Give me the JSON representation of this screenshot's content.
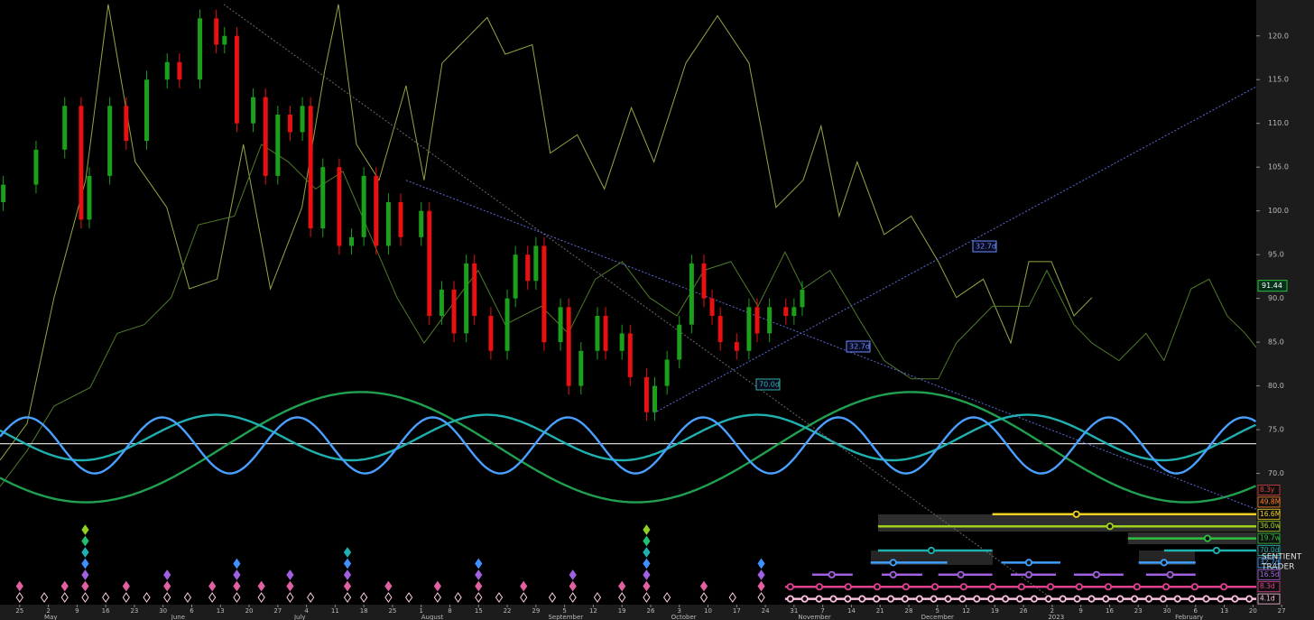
{
  "chart_data": {
    "type": "candlestick",
    "xlim": [
      -4.8,
      315.9
    ],
    "ylim": [
      55,
      124.1
    ],
    "yticks": [
      {
        "value": 70,
        "label": "70.0"
      },
      {
        "value": 75,
        "label": "75.0"
      },
      {
        "value": 80,
        "label": "80.0"
      },
      {
        "value": 85,
        "label": "85.0"
      },
      {
        "value": 90,
        "label": "90.0"
      },
      {
        "value": 95,
        "label": "95.0"
      },
      {
        "value": 100,
        "label": "100.0"
      },
      {
        "value": 105,
        "label": "105.0"
      },
      {
        "value": 110,
        "label": "110.0"
      },
      {
        "value": 115,
        "label": "115.0"
      },
      {
        "value": 120,
        "label": "120.0"
      }
    ],
    "xticks": [
      {
        "value": 0,
        "label": "25"
      },
      {
        "value": 7,
        "label": "2"
      },
      {
        "value": 14,
        "label": "9"
      },
      {
        "value": 21,
        "label": "16"
      },
      {
        "value": 28,
        "label": "23"
      },
      {
        "value": 35,
        "label": "30"
      },
      {
        "value": 42,
        "label": "6"
      },
      {
        "value": 49,
        "label": "13"
      },
      {
        "value": 56,
        "label": "20"
      },
      {
        "value": 63,
        "label": "27"
      },
      {
        "value": 70,
        "label": "4"
      },
      {
        "value": 77,
        "label": "11"
      },
      {
        "value": 84,
        "label": "18"
      },
      {
        "value": 91,
        "label": "25"
      },
      {
        "value": 98,
        "label": "1"
      },
      {
        "value": 105,
        "label": "8"
      },
      {
        "value": 112,
        "label": "15"
      },
      {
        "value": 119,
        "label": "22"
      },
      {
        "value": 126,
        "label": "29"
      },
      {
        "value": 133,
        "label": "5"
      },
      {
        "value": 140,
        "label": "12"
      },
      {
        "value": 147,
        "label": "19"
      },
      {
        "value": 154,
        "label": "26"
      },
      {
        "value": 161,
        "label": "3"
      },
      {
        "value": 168,
        "label": "10"
      },
      {
        "value": 175,
        "label": "17"
      },
      {
        "value": 182,
        "label": "24"
      },
      {
        "value": 189,
        "label": "31"
      },
      {
        "value": 196,
        "label": "7"
      },
      {
        "value": 203,
        "label": "14"
      },
      {
        "value": 210,
        "label": "21"
      },
      {
        "value": 217,
        "label": "28"
      },
      {
        "value": 224,
        "label": "5"
      },
      {
        "value": 231,
        "label": "12"
      },
      {
        "value": 238,
        "label": "19"
      },
      {
        "value": 245,
        "label": "26"
      },
      {
        "value": 252,
        "label": "2"
      },
      {
        "value": 259,
        "label": "9"
      },
      {
        "value": 266,
        "label": "16"
      },
      {
        "value": 273,
        "label": "23"
      },
      {
        "value": 280,
        "label": "30"
      },
      {
        "value": 287,
        "label": "6"
      },
      {
        "value": 294,
        "label": "13"
      },
      {
        "value": 301,
        "label": "20"
      },
      {
        "value": 308,
        "label": "27"
      }
    ],
    "month_ticks": [
      {
        "value": 6,
        "label": "May"
      },
      {
        "value": 37,
        "label": "June"
      },
      {
        "value": 67,
        "label": "July"
      },
      {
        "value": 98,
        "label": "August"
      },
      {
        "value": 129,
        "label": "September"
      },
      {
        "value": 159,
        "label": "October"
      },
      {
        "value": 190,
        "label": "November"
      },
      {
        "value": 220,
        "label": "December"
      },
      {
        "value": 251,
        "label": "2023"
      },
      {
        "value": 282,
        "label": "February"
      }
    ],
    "up_color": "#1aa01a",
    "down_color": "#e81010",
    "candles": {
      "x": [
        -4,
        4,
        11,
        15,
        17,
        22,
        26,
        31,
        36,
        39,
        44,
        48,
        50,
        53,
        57,
        60,
        63,
        66,
        69,
        71,
        74,
        78,
        81,
        84,
        87,
        90,
        93,
        98,
        100,
        103,
        106,
        109,
        111,
        115,
        119,
        121,
        124,
        126,
        128,
        132,
        134,
        137,
        141,
        143,
        147,
        149,
        153,
        155,
        158,
        161,
        164,
        167,
        169,
        171,
        175,
        178,
        180,
        183,
        187,
        189,
        191
      ],
      "open": [
        101,
        103,
        107,
        112,
        99,
        104,
        112,
        108,
        115,
        117,
        115,
        122,
        119,
        120,
        110,
        113,
        104,
        111,
        109,
        112,
        98,
        105,
        96,
        97,
        104,
        96,
        101,
        97,
        100,
        88,
        91,
        86,
        94,
        88,
        84,
        90,
        95,
        92,
        96,
        85,
        89,
        80,
        84,
        88,
        84,
        86,
        81,
        77,
        80,
        83,
        87,
        94,
        90,
        88,
        85,
        84,
        89,
        86,
        89,
        88,
        89
      ],
      "high": [
        104,
        108,
        113,
        113,
        105,
        113,
        113,
        116,
        118,
        118,
        123,
        123,
        121,
        121,
        114,
        114,
        112,
        112,
        113,
        113,
        106,
        106,
        98,
        105,
        105,
        102,
        102,
        101,
        101,
        92,
        92,
        95,
        95,
        89,
        91,
        96,
        96,
        97,
        97,
        90,
        90,
        85,
        89,
        89,
        87,
        87,
        82,
        81,
        84,
        88,
        95,
        95,
        91,
        89,
        86,
        90,
        90,
        90,
        90,
        90,
        92
      ],
      "low": [
        100,
        102,
        106,
        98,
        98,
        103,
        107,
        107,
        114,
        114,
        114,
        118,
        118,
        109,
        109,
        103,
        103,
        108,
        108,
        97,
        97,
        95,
        95,
        96,
        95,
        95,
        96,
        96,
        87,
        87,
        85,
        85,
        87,
        83,
        83,
        89,
        91,
        91,
        84,
        84,
        79,
        79,
        83,
        83,
        83,
        80,
        76,
        76,
        79,
        82,
        86,
        89,
        87,
        84,
        83,
        83,
        85,
        85,
        87,
        87,
        88
      ],
      "close": [
        103,
        107,
        112,
        99,
        104,
        112,
        108,
        115,
        117,
        115,
        122,
        119,
        120,
        110,
        113,
        104,
        111,
        109,
        112,
        98,
        105,
        96,
        97,
        104,
        96,
        101,
        97,
        100,
        88,
        91,
        86,
        94,
        88,
        84,
        90,
        95,
        92,
        96,
        85,
        89,
        80,
        84,
        88,
        84,
        86,
        81,
        77,
        80,
        83,
        87,
        94,
        90,
        88,
        85,
        84,
        89,
        86,
        89,
        88,
        89,
        91
      ]
    },
    "last_price": 91.44,
    "last_price_color": "#30c040",
    "overlays": [
      {
        "color": "#8fa844",
        "x": [
          -4.8,
          1.8,
          8.4,
          16.1,
          21.6,
          28.2,
          35.9,
          41.4,
          48.2,
          54.6,
          61.2,
          68.9,
          74.4,
          77.8,
          82.2,
          87.7,
          94.3,
          98.7,
          103.1,
          109.7,
          114.1,
          118.5,
          125.1,
          129.5,
          136.1,
          142.7,
          149.3,
          154.8,
          162.6,
          170.3,
          178,
          184.6,
          191.2,
          195.6,
          200,
          204.4,
          211,
          217.6,
          224.2,
          228.6,
          235.2,
          241.9,
          246.3,
          251.8,
          257.3,
          261.7
        ],
        "values": [
          71.5,
          75.7,
          90.1,
          103.5,
          123.6,
          105.6,
          100.4,
          91.1,
          92.2,
          107.6,
          91.1,
          100.4,
          115.9,
          123.6,
          107.6,
          103.5,
          114.3,
          103.5,
          116.9,
          120,
          122.1,
          117.9,
          119,
          106.6,
          108.7,
          102.5,
          111.8,
          105.6,
          116.9,
          122.3,
          116.9,
          100.4,
          103.5,
          109.7,
          99.4,
          105.6,
          97.3,
          99.4,
          94.2,
          90.1,
          92.2,
          84.9,
          94.2,
          94.2,
          88,
          90.1
        ]
      },
      {
        "color": "#4f7a2a",
        "x": [
          -4.8,
          1.8,
          8.4,
          17.2,
          23.8,
          30.4,
          37,
          43.6,
          52.4,
          59,
          65.6,
          72.2,
          78.9,
          85.5,
          92.1,
          98.7,
          105.3,
          111.9,
          118.5,
          127.3,
          133.9,
          140.5,
          147.1,
          153.7,
          160.4,
          167,
          173.6,
          180.2,
          186.8,
          191.2,
          197.8,
          204.4,
          211,
          217.6,
          224.2,
          228.6,
          237.4,
          246.3,
          250.7,
          257.3,
          261.7,
          268.3,
          274.9,
          279.3,
          285.9,
          290.3,
          294.7,
          299.1,
          301.8
        ],
        "values": [
          68.5,
          72.6,
          77.7,
          79.8,
          86,
          87,
          90.1,
          98.4,
          99.4,
          107.6,
          105.6,
          102.5,
          104.5,
          97.3,
          90.1,
          84.9,
          89.1,
          93.2,
          87,
          89.1,
          86,
          92.2,
          94.2,
          90.1,
          88,
          93.2,
          94.2,
          89.1,
          95.3,
          91.1,
          93.2,
          88,
          82.9,
          80.8,
          80.8,
          84.9,
          89.1,
          89.1,
          93.2,
          87,
          84.9,
          82.9,
          86,
          82.9,
          91.1,
          92.2,
          88,
          86,
          84.4
        ]
      }
    ],
    "cycles": [
      {
        "color": "#20a050",
        "center": 73,
        "amplitude": 6.3,
        "period": 134.3,
        "peak_x": 83.3
      },
      {
        "color": "#20b0b0",
        "center": 74.1,
        "amplitude": 2.6,
        "period": 66,
        "peak_x": 48
      },
      {
        "color": "#4aa0ff",
        "center": 73.2,
        "amplitude": 3.2,
        "period": 33,
        "peak_x": 34.8
      }
    ],
    "baseline": 73.4,
    "trendlines": [
      {
        "color": "#6a6a6a",
        "x": [
          49.8,
          250.7
        ],
        "y": [
          123.6,
          56.1
        ]
      },
      {
        "color": "#5a6ad8",
        "x": [
          94.3,
          301.8
        ],
        "y": [
          103.5,
          65.9
        ]
      },
      {
        "color": "#5a6ad8",
        "x": [
          154.8,
          301.8
        ],
        "y": [
          76.9,
          114.2
        ]
      }
    ],
    "annotations": [
      {
        "text": "32.7d",
        "color": "#6a8cff"
      },
      {
        "text": "32.7d",
        "color": "#6a8cff"
      },
      {
        "text": "70.0d",
        "color": "#30b0a0"
      }
    ],
    "cycle_rows": [
      {
        "name": "8.3y",
        "color": "#e04040"
      },
      {
        "name": "49.8M",
        "color": "#ff8020"
      },
      {
        "name": "16.6M",
        "color": "#f0d020",
        "segments": [
          [
            237.4,
            301.8
          ]
        ],
        "markers": [
          257.9
        ]
      },
      {
        "name": "36.0w",
        "color": "#a0d020",
        "segments": [
          [
            209.5,
            301.8
          ]
        ],
        "markers": [
          266.1
        ]
      },
      {
        "name": "19.7w",
        "color": "#30c040",
        "segments": [
          [
            270.5,
            301.8
          ]
        ],
        "markers": [
          289.9
        ]
      },
      {
        "name": "70.0d",
        "color": "#20b0b0",
        "segments": [
          [
            209.5,
            237.4
          ],
          [
            279.3,
            301.8
          ]
        ],
        "markers": [
          222.5,
          292.1
        ]
      },
      {
        "name": "32.7d",
        "color": "#40a0ff",
        "segments": [
          [
            207.7,
            226.4
          ],
          [
            239.6,
            254
          ],
          [
            273.1,
            287
          ]
        ],
        "markers": [
          213.2,
          246.3,
          279.3
        ]
      },
      {
        "name": "16.5d",
        "color": "#a060e0",
        "segments": [
          [
            193.4,
            203.3
          ],
          [
            210.4,
            220.3
          ],
          [
            224.2,
            237.4
          ],
          [
            241.9,
            252.9
          ],
          [
            257.3,
            269.4
          ],
          [
            274.9,
            287
          ]
        ],
        "markers": [
          198.2,
          213.2,
          229.7,
          246.3,
          262.8,
          280.8
        ]
      },
      {
        "name": "8.3d",
        "color": "#e04090",
        "segments": [
          [
            186.8,
            301.8
          ]
        ],
        "markers": [
          188.1,
          195.2,
          202.2,
          209.3,
          216.3,
          223.4,
          230.4,
          237.5,
          244.5,
          251.6,
          258.6,
          265.7,
          272.7,
          279.8,
          286.8,
          293.9
        ]
      },
      {
        "name": "4.1d",
        "color": "#ffc0e0",
        "segments": [
          [
            186.8,
            301.8
          ]
        ],
        "markers": [
          188.1,
          191.6,
          195.1,
          198.6,
          202.1,
          205.6,
          209.1,
          212.6,
          216.1,
          219.6,
          223.1,
          226.6,
          230.1,
          233.6,
          237.1,
          240.6,
          244.1,
          247.6,
          251.1,
          254.6,
          258.1,
          261.6,
          265.1,
          268.6,
          272.1,
          275.6,
          279.1,
          282.6,
          286.1,
          289.6,
          293.1,
          296.6,
          300.1
        ]
      }
    ],
    "trough_colors": [
      "#ffd0e8",
      "#e060a0",
      "#a060e0",
      "#4090ff",
      "#20b0b0",
      "#20c070",
      "#90d020"
    ],
    "troughs": {
      "x": [
        0,
        6,
        11,
        16,
        21,
        26,
        31,
        36,
        41,
        47,
        53,
        59,
        66,
        71,
        80,
        84,
        90,
        95,
        102,
        107,
        112,
        117,
        123,
        130,
        135,
        141,
        147,
        153,
        158,
        167,
        174,
        181
      ],
      "levels": [
        2,
        1,
        2,
        7,
        1,
        2,
        1,
        3,
        1,
        2,
        4,
        2,
        3,
        1,
        5,
        1,
        2,
        1,
        2,
        1,
        4,
        1,
        2,
        1,
        3,
        1,
        2,
        7,
        1,
        2,
        1,
        4
      ]
    },
    "watermark": [
      "SENTIENT",
      "TRADER"
    ]
  }
}
